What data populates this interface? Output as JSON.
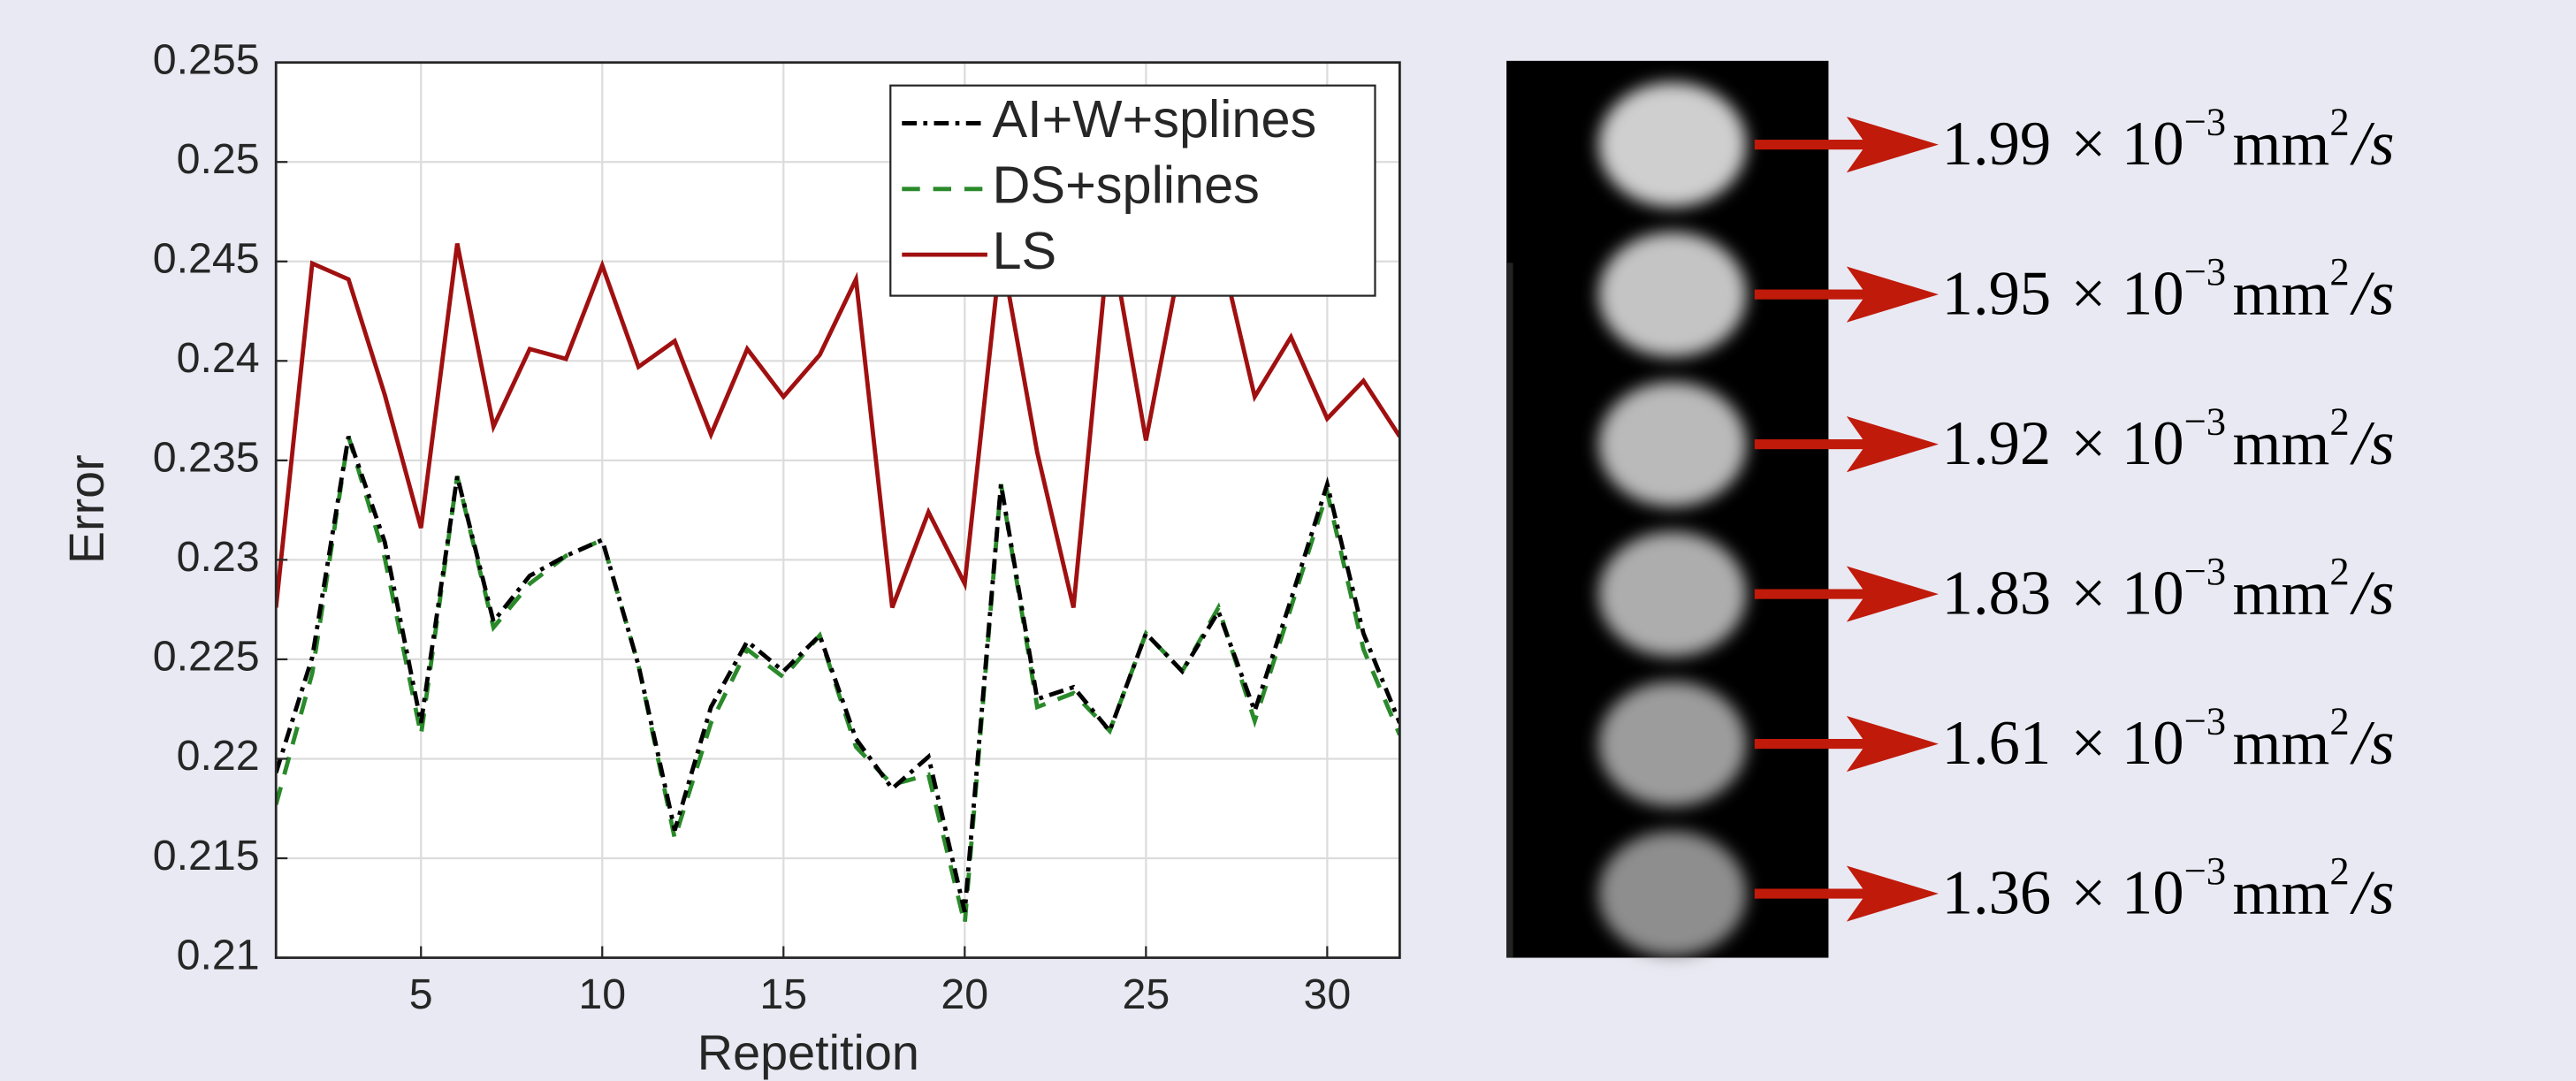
{
  "chart_data": {
    "type": "line",
    "x_label": "Repetition",
    "y_label": "Error",
    "x": [
      1,
      2,
      3,
      4,
      5,
      6,
      7,
      8,
      9,
      10,
      11,
      12,
      13,
      14,
      15,
      16,
      17,
      18,
      19,
      20,
      21,
      22,
      23,
      24,
      25,
      26,
      27,
      28,
      29,
      30,
      31,
      32
    ],
    "series": [
      {
        "name": "AI+W+splines",
        "color": "#000000",
        "dash": "dash-dot",
        "values": [
          0.2193,
          0.2251,
          0.2362,
          0.2309,
          0.2218,
          0.2342,
          0.2269,
          0.2292,
          0.2302,
          0.231,
          0.2247,
          0.2164,
          0.2226,
          0.2259,
          0.2244,
          0.2262,
          0.221,
          0.2185,
          0.2201,
          0.2123,
          0.2338,
          0.223,
          0.2236,
          0.2214,
          0.2263,
          0.2244,
          0.2274,
          0.2224,
          0.228,
          0.2338,
          0.2263,
          0.2218
        ]
      },
      {
        "name": "DS+splines",
        "color": "#2a8a2a",
        "dash": "dashed",
        "values": [
          0.2177,
          0.2243,
          0.2362,
          0.2301,
          0.2212,
          0.2342,
          0.2266,
          0.2288,
          0.2302,
          0.231,
          0.2247,
          0.216,
          0.2218,
          0.2255,
          0.2241,
          0.2262,
          0.2206,
          0.2187,
          0.2192,
          0.2117,
          0.2338,
          0.2226,
          0.2233,
          0.2214,
          0.2263,
          0.2244,
          0.2276,
          0.2219,
          0.2276,
          0.2334,
          0.2255,
          0.2212
        ]
      },
      {
        "name": "LS",
        "color": "#a01010",
        "dash": "solid",
        "values": [
          0.2276,
          0.2449,
          0.2441,
          0.2383,
          0.2316,
          0.2459,
          0.2367,
          0.2406,
          0.2401,
          0.2448,
          0.2397,
          0.241,
          0.2363,
          0.2406,
          0.2382,
          0.2403,
          0.2441,
          0.2276,
          0.2324,
          0.2288,
          0.2456,
          0.2354,
          0.2276,
          0.2465,
          0.236,
          0.2455,
          0.246,
          0.2382,
          0.2412,
          0.2371,
          0.239,
          0.2362
        ]
      }
    ],
    "xlim": [
      1,
      32
    ],
    "xticks": [
      5,
      10,
      15,
      20,
      25,
      30
    ],
    "ylim": [
      0.21,
      0.255
    ],
    "yticks": [
      0.21,
      0.215,
      0.22,
      0.225,
      0.23,
      0.235,
      0.24,
      0.245,
      0.25,
      0.255
    ],
    "grid": true,
    "legend": "upper-right"
  },
  "image_panel": {
    "labels": [
      "1.99",
      "1.95",
      "1.92",
      "1.83",
      "1.61",
      "1.36"
    ],
    "multiplier": "× 10",
    "exponent": "−3",
    "unit": "mm",
    "unit_exponent": "2",
    "per": "/s"
  }
}
